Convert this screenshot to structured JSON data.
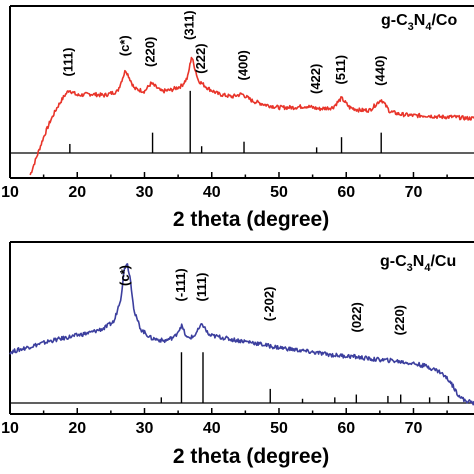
{
  "chart_data": [
    {
      "type": "line",
      "title": "g-C3N4/Co",
      "title_parts": [
        "g-C",
        "3",
        "N",
        "4",
        "/Co"
      ],
      "xlabel": "2 theta (degree)",
      "ylabel": "",
      "xlim": [
        10,
        79
      ],
      "ylim": [
        0,
        1
      ],
      "x_ticks": [
        10,
        20,
        30,
        40,
        50,
        60,
        70
      ],
      "grid": false,
      "series": [
        {
          "color": "#e8352a",
          "x": [
            13,
            14,
            15,
            16,
            17,
            18,
            18.8,
            20,
            22,
            24,
            26,
            27.2,
            28.5,
            30,
            31,
            32.5,
            34,
            35.5,
            36.4,
            37,
            38,
            39.5,
            41,
            43,
            44.5,
            46,
            48,
            50,
            52,
            54,
            56,
            58,
            59.3,
            60.5,
            62,
            63.5,
            65.2,
            66.5,
            68,
            70,
            72,
            74,
            76,
            78,
            79
          ],
          "y": [
            0.0,
            0.14,
            0.28,
            0.4,
            0.5,
            0.58,
            0.63,
            0.59,
            0.6,
            0.59,
            0.62,
            0.78,
            0.64,
            0.62,
            0.68,
            0.62,
            0.63,
            0.66,
            0.72,
            0.88,
            0.7,
            0.64,
            0.6,
            0.58,
            0.6,
            0.55,
            0.52,
            0.5,
            0.5,
            0.51,
            0.49,
            0.5,
            0.57,
            0.5,
            0.48,
            0.48,
            0.56,
            0.47,
            0.45,
            0.44,
            0.44,
            0.43,
            0.43,
            0.42,
            0.42
          ]
        }
      ],
      "reference_lines": [
        {
          "x": 18.9,
          "h": 0.08
        },
        {
          "x": 31.2,
          "h": 0.18
        },
        {
          "x": 36.8,
          "h": 0.55
        },
        {
          "x": 38.5,
          "h": 0.06
        },
        {
          "x": 44.8,
          "h": 0.1
        },
        {
          "x": 55.6,
          "h": 0.05
        },
        {
          "x": 59.3,
          "h": 0.14
        },
        {
          "x": 65.2,
          "h": 0.18
        }
      ],
      "annotations": [
        {
          "x": 18.8,
          "y": 0.73,
          "text": "(111)"
        },
        {
          "x": 27.2,
          "y": 0.88,
          "text": "(c*)"
        },
        {
          "x": 31.0,
          "y": 0.8,
          "text": "(220)"
        },
        {
          "x": 36.8,
          "y": 1.0,
          "text": "(311)"
        },
        {
          "x": 38.5,
          "y": 0.75,
          "text": "(222)"
        },
        {
          "x": 44.8,
          "y": 0.7,
          "text": "(400)"
        },
        {
          "x": 55.6,
          "y": 0.6,
          "text": "(422)"
        },
        {
          "x": 59.3,
          "y": 0.67,
          "text": "(511)"
        },
        {
          "x": 65.2,
          "y": 0.66,
          "text": "(440)"
        }
      ]
    },
    {
      "type": "line",
      "title": "g-C3N4/Cu",
      "title_parts": [
        "g-C",
        "3",
        "N",
        "4",
        "/Cu"
      ],
      "xlabel": "2 theta (degree)",
      "ylabel": "",
      "xlim": [
        10,
        79
      ],
      "ylim": [
        0,
        1
      ],
      "x_ticks": [
        10,
        20,
        30,
        40,
        50,
        60,
        70
      ],
      "grid": false,
      "series": [
        {
          "color": "#3c3f9e",
          "x": [
            10,
            13,
            16,
            19,
            22,
            24,
            25.5,
            26.5,
            27,
            27.4,
            27.9,
            28.5,
            29.5,
            31,
            33,
            34.5,
            35.5,
            36.3,
            37.3,
            38.6,
            39.6,
            41,
            43,
            46,
            49,
            52,
            55,
            58,
            61,
            64,
            67,
            70,
            72,
            74,
            75.5,
            76.5,
            77.5,
            79
          ],
          "y": [
            0.36,
            0.4,
            0.44,
            0.47,
            0.5,
            0.53,
            0.58,
            0.75,
            0.95,
            1.0,
            0.88,
            0.64,
            0.52,
            0.46,
            0.44,
            0.47,
            0.55,
            0.46,
            0.47,
            0.56,
            0.48,
            0.47,
            0.45,
            0.43,
            0.4,
            0.38,
            0.36,
            0.34,
            0.33,
            0.31,
            0.3,
            0.28,
            0.26,
            0.22,
            0.15,
            0.07,
            0.02,
            0.0
          ]
        }
      ],
      "reference_lines": [
        {
          "x": 32.5,
          "h": 0.04
        },
        {
          "x": 35.5,
          "h": 0.36
        },
        {
          "x": 38.7,
          "h": 0.36
        },
        {
          "x": 48.7,
          "h": 0.1
        },
        {
          "x": 53.5,
          "h": 0.03
        },
        {
          "x": 58.3,
          "h": 0.04
        },
        {
          "x": 61.5,
          "h": 0.06
        },
        {
          "x": 66.2,
          "h": 0.05
        },
        {
          "x": 68.1,
          "h": 0.06
        },
        {
          "x": 72.4,
          "h": 0.04
        },
        {
          "x": 75.2,
          "h": 0.05
        }
      ],
      "annotations": [
        {
          "x": 27.2,
          "y": 0.83,
          "text": "(c*)"
        },
        {
          "x": 35.5,
          "y": 0.72,
          "text": "(-111)"
        },
        {
          "x": 38.6,
          "y": 0.72,
          "text": "(111)"
        },
        {
          "x": 48.7,
          "y": 0.58,
          "text": "(-202)"
        },
        {
          "x": 61.7,
          "y": 0.5,
          "text": "(022)"
        },
        {
          "x": 68.1,
          "y": 0.48,
          "text": "(220)"
        }
      ]
    }
  ]
}
